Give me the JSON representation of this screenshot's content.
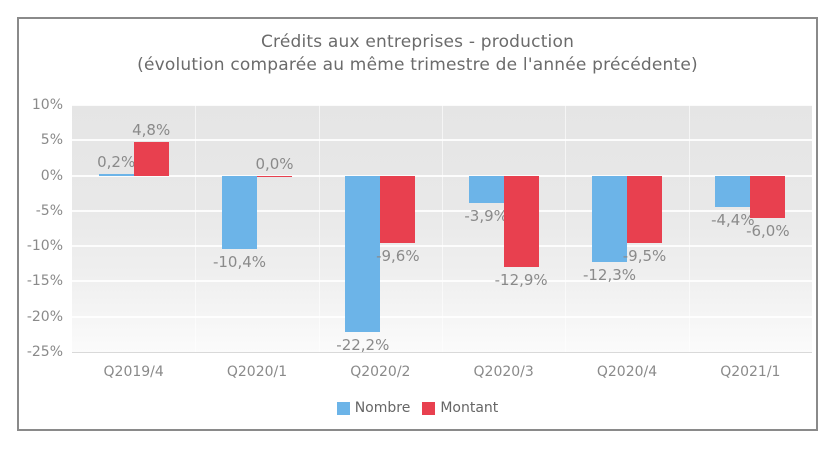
{
  "chart_data": {
    "type": "bar",
    "title": "Crédits aux entreprises - production",
    "subtitle": "(évolution comparée au même trimestre de l'année précédente)",
    "categories": [
      "Q2019/4",
      "Q2020/1",
      "Q2020/2",
      "Q2020/3",
      "Q2020/4",
      "Q2021/1"
    ],
    "series": [
      {
        "name": "Nombre",
        "color": "#6CB4E8",
        "values": [
          0.2,
          -10.4,
          -22.2,
          -3.9,
          -12.3,
          -4.4
        ],
        "labels": [
          "0,2%",
          "-10,4%",
          "-22,2%",
          "-3,9%",
          "-12,3%",
          "-4,4%"
        ]
      },
      {
        "name": "Montant",
        "color": "#E8404F",
        "values": [
          4.8,
          0.0,
          -9.6,
          -12.9,
          -9.5,
          -6.0
        ],
        "labels": [
          "4,8%",
          "0,0%",
          "-9,6%",
          "-12,9%",
          "-9,5%",
          "-6,0%"
        ]
      }
    ],
    "y_axis": {
      "min": -25,
      "max": 10,
      "step": 5,
      "tick_labels": [
        "10%",
        "5%",
        "0%",
        "-5%",
        "-10%",
        "-15%",
        "-20%",
        "-25%"
      ]
    },
    "legend_position": "bottom",
    "grid": true
  }
}
